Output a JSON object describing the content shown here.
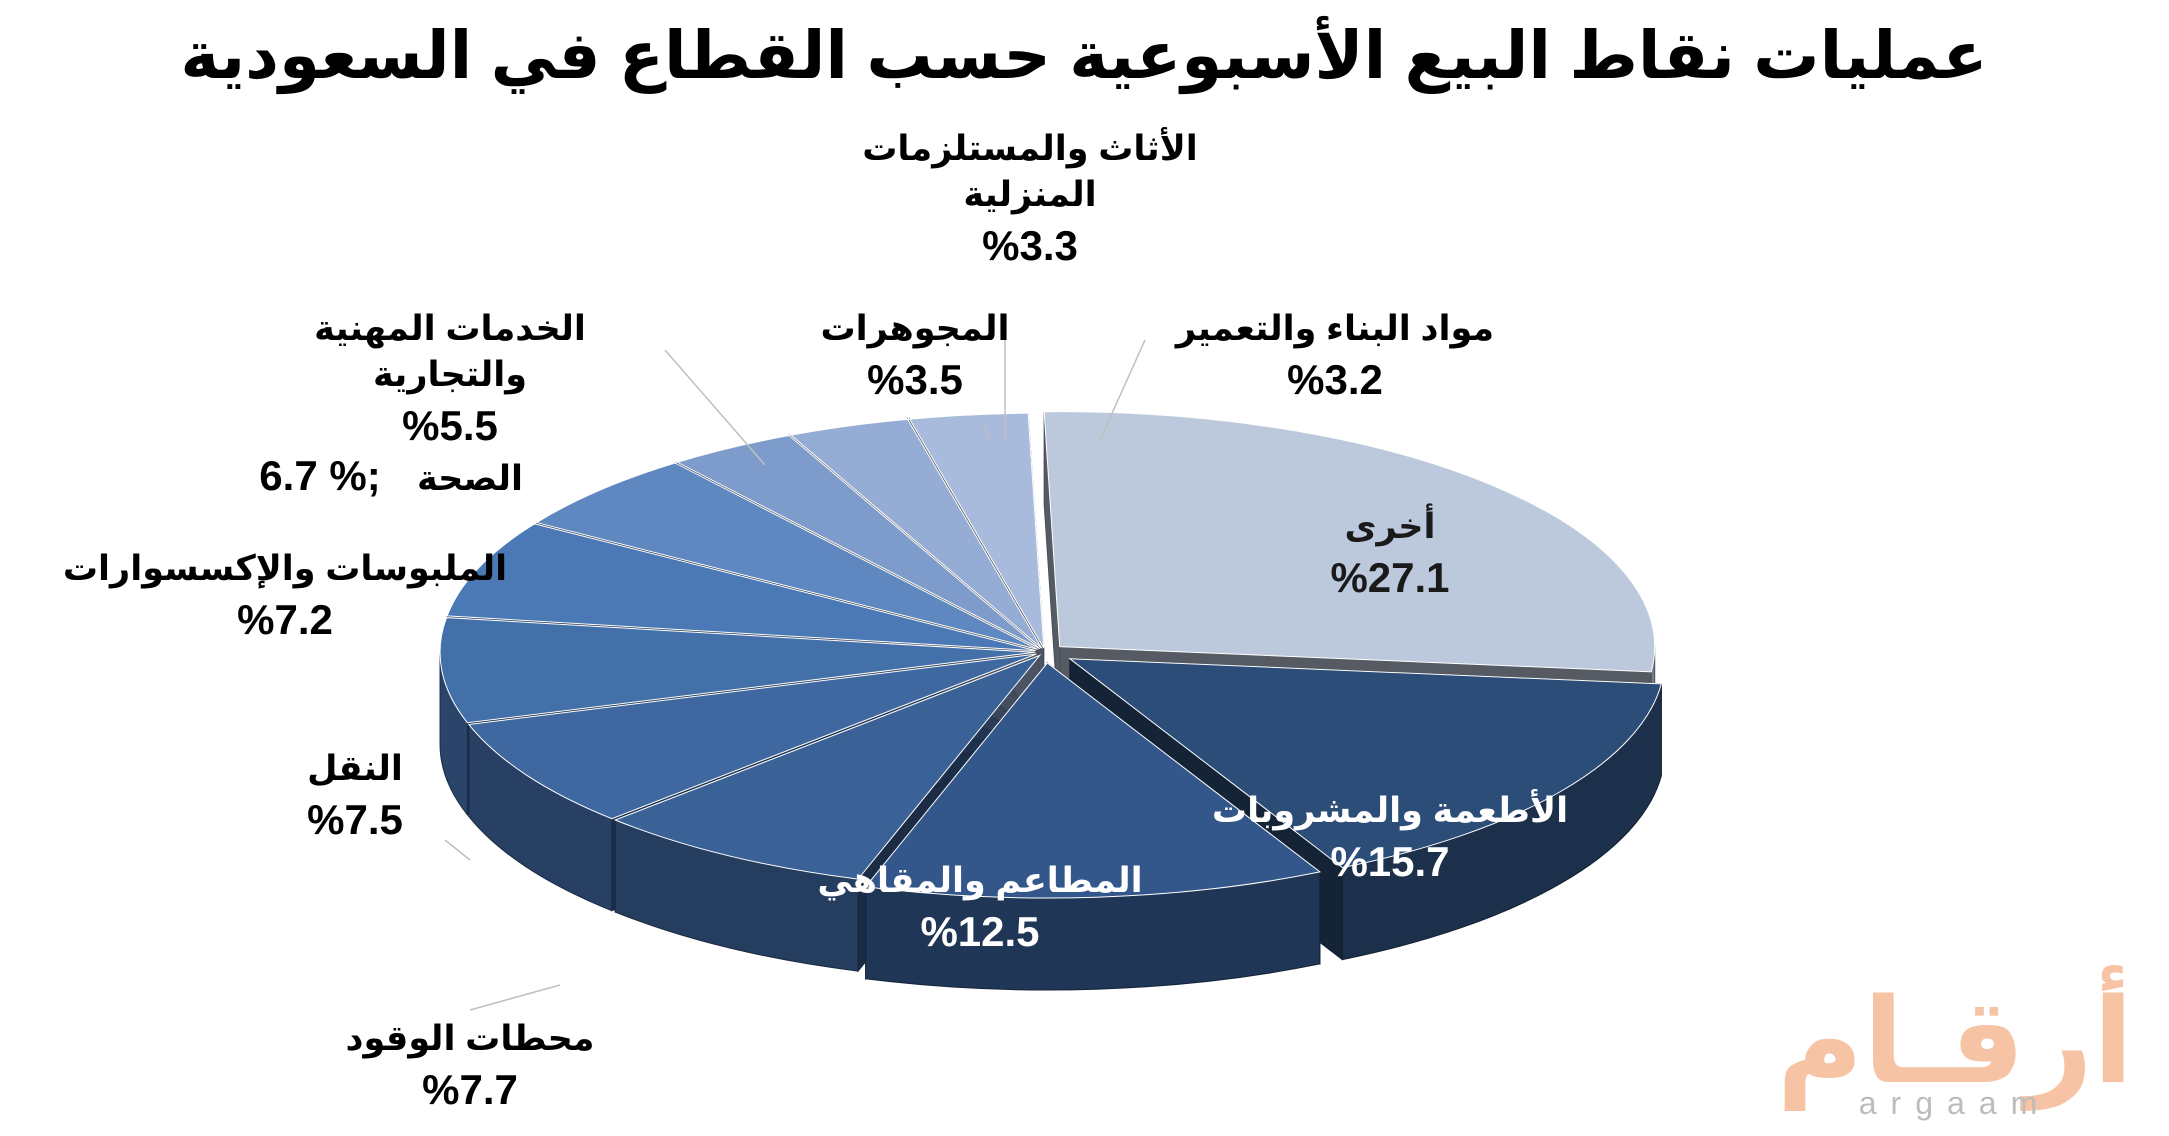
{
  "chart_data": {
    "type": "pie",
    "variant": "3d-exploded",
    "title": "عمليات نقاط البيع الأسبوعية حسب القطاع في السعودية",
    "unit": "%",
    "slices": [
      {
        "label": "أخرى",
        "value": 27.1,
        "value_text": "%27.1",
        "color": "#bcc9dd"
      },
      {
        "label": "الأطعمة والمشروبات",
        "value": 15.7,
        "value_text": "%15.7",
        "color": "#2d4d79"
      },
      {
        "label": "المطاعم والمقاهي",
        "value": 12.5,
        "value_text": "%12.5",
        "color": "#33578a"
      },
      {
        "label": "محطات الوقود",
        "value": 7.7,
        "value_text": "%7.7",
        "color": "#3b6297"
      },
      {
        "label": "النقل",
        "value": 7.5,
        "value_text": "%7.5",
        "color": "#3f68a0"
      },
      {
        "label": "الملبوسات والإكسسوارات",
        "value": 7.2,
        "value_text": "%7.2",
        "color": "#4470aa"
      },
      {
        "label": "الصحة",
        "value": 6.7,
        "value_text": "6.7 %;",
        "color": "#4a79b6"
      },
      {
        "label": "الخدمات المهنية والتجارية",
        "value": 5.5,
        "value_text": "%5.5",
        "color": "#5f88c0"
      },
      {
        "label": "المجوهرات",
        "value": 3.5,
        "value_text": "%3.5",
        "color": "#7e9ccb"
      },
      {
        "label": "الأثاث والمستلزمات المنزلية",
        "value": 3.3,
        "value_text": "%3.3",
        "color": "#95acd4"
      },
      {
        "label": "مواد البناء والتعمير",
        "value": 3.2,
        "value_text": "%3.2",
        "color": "#a9bbdc"
      }
    ],
    "legend": "none"
  },
  "watermark": {
    "arabic": "أرقـام",
    "latin": "argaam"
  }
}
